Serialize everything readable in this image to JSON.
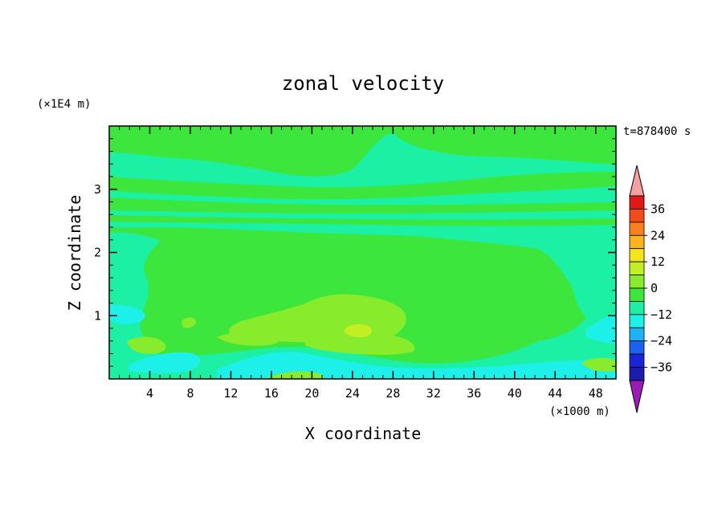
{
  "chart_data": {
    "type": "heatmap",
    "title": "zonal velocity",
    "xlabel": "X coordinate",
    "ylabel": "Z coordinate",
    "x_unit": "(×1000 m)",
    "y_unit": "(×1E4 m)",
    "time_label": "t=878400 s",
    "xlim": [
      0,
      50
    ],
    "ylim": [
      0,
      4
    ],
    "x_ticks": [
      4,
      8,
      12,
      16,
      20,
      24,
      28,
      32,
      36,
      40,
      44,
      48
    ],
    "y_ticks": [
      1,
      2,
      3
    ],
    "colorbar": {
      "ticks": [
        36,
        24,
        12,
        0,
        -12,
        -24,
        -36
      ],
      "range": [
        -42,
        42
      ],
      "levels": [
        {
          "from": 36,
          "to": 42,
          "color": "#e01818"
        },
        {
          "from": 30,
          "to": 36,
          "color": "#f24a1a"
        },
        {
          "from": 24,
          "to": 30,
          "color": "#f8801e"
        },
        {
          "from": 18,
          "to": 24,
          "color": "#fcb41c"
        },
        {
          "from": 12,
          "to": 18,
          "color": "#f4e41c"
        },
        {
          "from": 6,
          "to": 12,
          "color": "#c4ee24"
        },
        {
          "from": 0,
          "to": 6,
          "color": "#88ec2c"
        },
        {
          "from": -6,
          "to": 0,
          "color": "#3ce63c"
        },
        {
          "from": -12,
          "to": -6,
          "color": "#1cf0a4"
        },
        {
          "from": -18,
          "to": -12,
          "color": "#1cf0e8"
        },
        {
          "from": -24,
          "to": -18,
          "color": "#1cb4f4"
        },
        {
          "from": -30,
          "to": -24,
          "color": "#1c60f4"
        },
        {
          "from": -36,
          "to": -30,
          "color": "#1c24d8"
        },
        {
          "from": -42,
          "to": -36,
          "color": "#1c1cac"
        }
      ],
      "top_extension_color": "#f4a0a0",
      "bottom_extension_color": "#9a1cb4"
    },
    "field_regions": [
      {
        "name": "upper band z 3.8-4.0",
        "color": "#3ce63c"
      },
      {
        "name": "band z 3.3-3.6",
        "color": "#1cf0a4"
      },
      {
        "name": "band z 2.6-2.9",
        "color": "#1cf0a4"
      },
      {
        "name": "band z 2.3-2.5",
        "color": "#1cf0a4"
      },
      {
        "name": "mid-level core x 5-45",
        "color": "#3ce63c"
      },
      {
        "name": "lower core x 20-30 z 0.4-1.2",
        "color": "#88ec2c"
      },
      {
        "name": "lower core center x 24 z 0.8",
        "color": "#c4ee24"
      },
      {
        "name": "near-surface band",
        "color": "#1cf0e8"
      }
    ]
  }
}
